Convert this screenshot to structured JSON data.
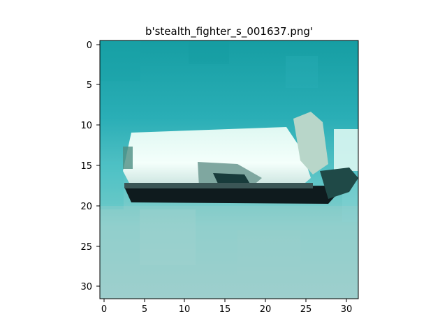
{
  "figure": {
    "title": "b'stealth_fighter_s_001637.png'"
  },
  "image": {
    "description_palette": {
      "sky_top": "#1a9fa6",
      "sky_mid": "#3bb7bf",
      "sea_bottom": "#9fd0cf",
      "hull_light": "#e9fbf6",
      "hull_shadow": "#0b1c1e",
      "sail_gray": "#b8d7cc"
    },
    "grid_size": 32
  },
  "axes": {
    "x_ticks": [
      "0",
      "5",
      "10",
      "15",
      "20",
      "25",
      "30"
    ],
    "y_ticks": [
      "0",
      "5",
      "10",
      "15",
      "20",
      "25",
      "30"
    ]
  }
}
